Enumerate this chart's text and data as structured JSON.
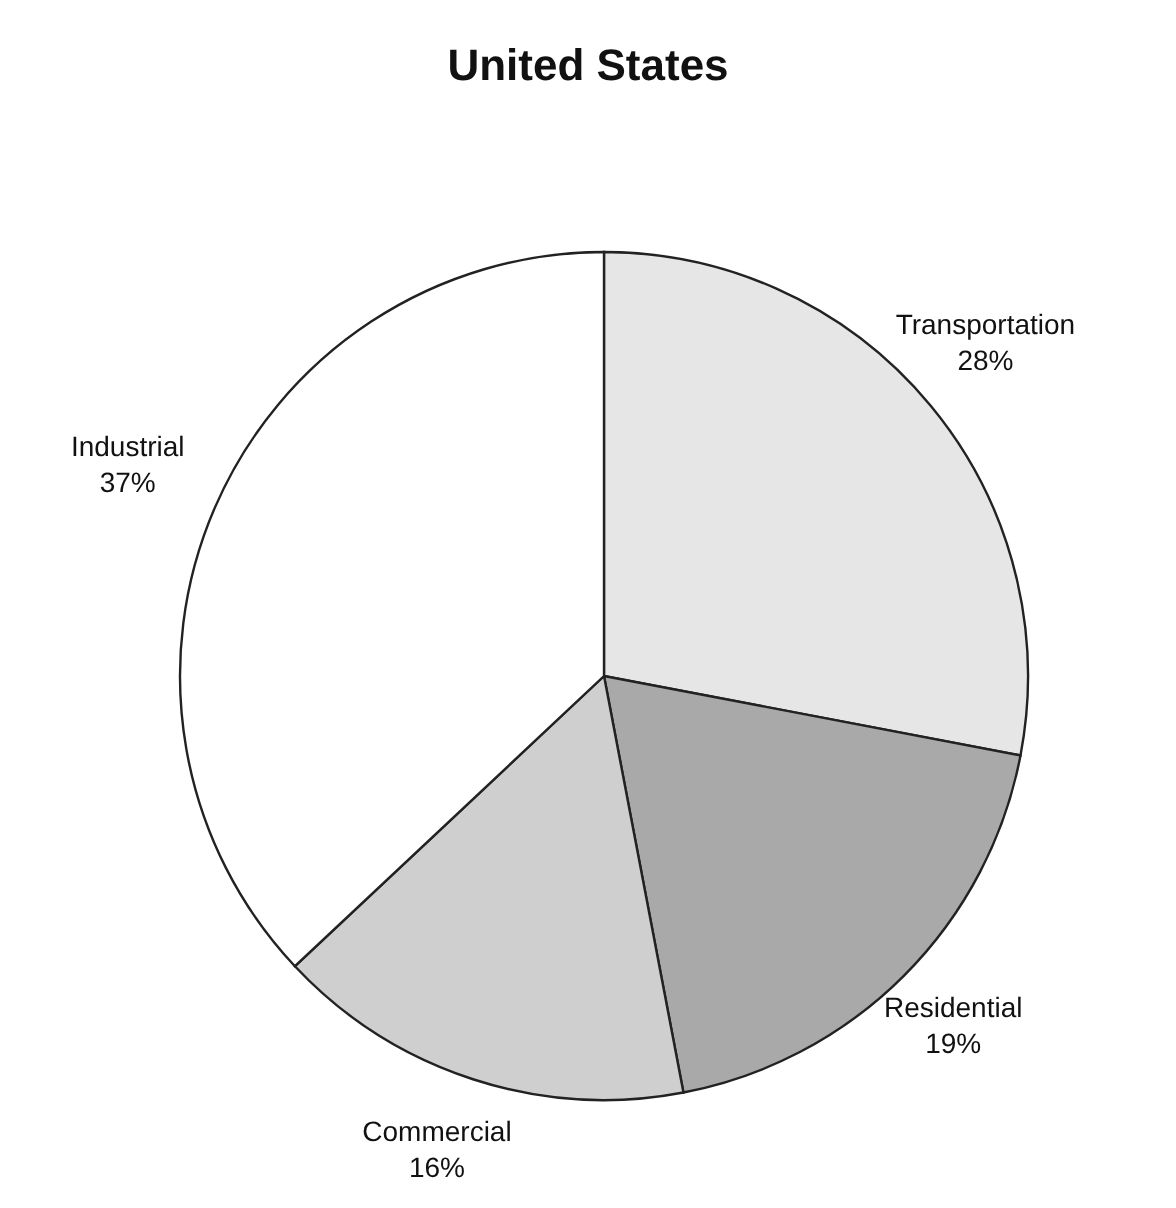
{
  "chart_data": {
    "type": "pie",
    "title": "United States",
    "categories": [
      "Transportation",
      "Residential",
      "Commercial",
      "Industrial"
    ],
    "values": [
      28,
      19,
      16,
      37
    ],
    "value_labels": [
      "28%",
      "19%",
      "16%",
      "37%"
    ],
    "colors": [
      "#e6e6e6",
      "#a9a9a9",
      "#cfcfcf",
      "#ffffff"
    ]
  }
}
